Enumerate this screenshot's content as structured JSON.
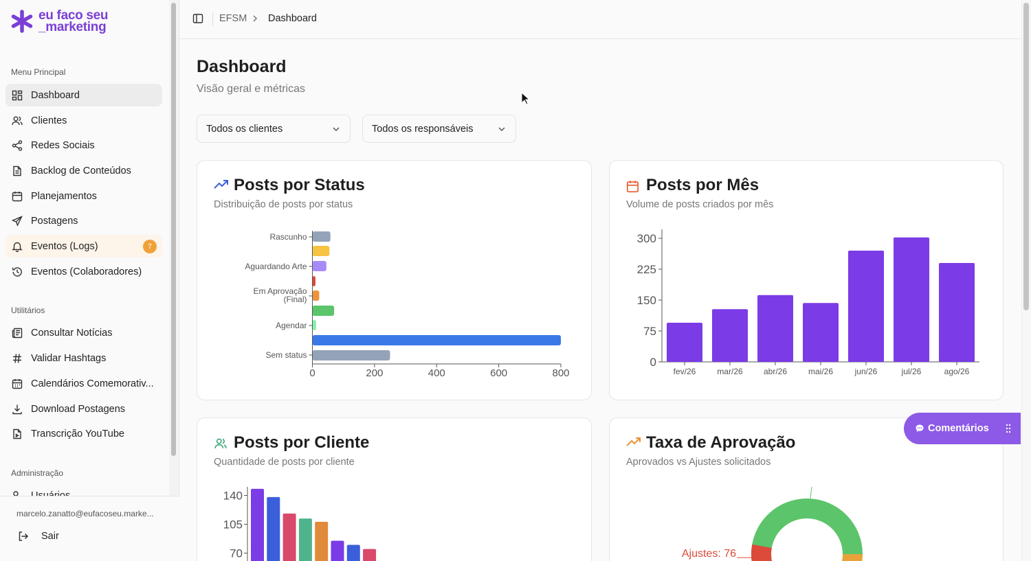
{
  "brand": {
    "line1": "eu faco seu",
    "line2": "_marketing",
    "color": "#7b3fd6"
  },
  "sidebar": {
    "sections": {
      "main": "Menu Principal",
      "utilities": "Utilitários",
      "admin": "Administração"
    },
    "main_items": [
      {
        "label": "Dashboard",
        "icon": "layout-grid-icon"
      },
      {
        "label": "Clientes",
        "icon": "users-icon"
      },
      {
        "label": "Redes Sociais",
        "icon": "share-icon"
      },
      {
        "label": "Backlog de Conteúdos",
        "icon": "file-text-icon"
      },
      {
        "label": "Planejamentos",
        "icon": "calendar-icon"
      },
      {
        "label": "Postagens",
        "icon": "send-icon"
      },
      {
        "label": "Eventos (Logs)",
        "icon": "bell-icon",
        "badge": "7"
      },
      {
        "label": "Eventos (Colaboradores)",
        "icon": "history-icon"
      }
    ],
    "utility_items": [
      {
        "label": "Consultar Notícias",
        "icon": "newspaper-icon"
      },
      {
        "label": "Validar Hashtags",
        "icon": "hash-icon"
      },
      {
        "label": "Calendários Comemorativ...",
        "icon": "calendar-days-icon"
      },
      {
        "label": "Download Postagens",
        "icon": "download-icon"
      },
      {
        "label": "Transcrição YouTube",
        "icon": "file-icon"
      }
    ],
    "admin_items": [
      {
        "label": "Usuários",
        "icon": "user-cog-icon"
      }
    ],
    "user_email": "marcelo.zanatto@eufacoseu.marke...",
    "logout_label": "Sair"
  },
  "topbar": {
    "breadcrumb_root": "EFSM",
    "breadcrumb_current": "Dashboard"
  },
  "page": {
    "title": "Dashboard",
    "subtitle": "Visão geral e métricas"
  },
  "filters": {
    "clients": "Todos os clientes",
    "responsibles": "Todos os responsáveis"
  },
  "cards": {
    "status": {
      "title": "Posts por Status",
      "subtitle": "Distribuição de posts por status",
      "icon": "trending-up-icon"
    },
    "month": {
      "title": "Posts por Mês",
      "subtitle": "Volume de posts criados por mês",
      "icon": "calendar-icon"
    },
    "client": {
      "title": "Posts por Cliente",
      "subtitle": "Quantidade de posts por cliente",
      "icon": "users-icon"
    },
    "approval": {
      "title": "Taxa de Aprovação",
      "subtitle": "Aprovados vs Ajustes solicitados",
      "icon": "trending-up-icon"
    }
  },
  "comments_button": "Comentários",
  "chart_data": [
    {
      "type": "bar",
      "orientation": "horizontal",
      "title": "Posts por Status",
      "category_labels": [
        "Rascunho",
        "Aguardando Arte",
        "Em Aprovação (Final)",
        "Agendar",
        "Sem status"
      ],
      "values": [
        58,
        55,
        45,
        10,
        22,
        70,
        12,
        800,
        250
      ],
      "bar_colors": [
        "#94a3b8",
        "#f6c343",
        "#a78bfa",
        "#dc4a3a",
        "#f0923a",
        "#5cc46a",
        "#86efac",
        "#3b78e7",
        "#94a3b8"
      ],
      "xticks": [
        "0",
        "200",
        "400",
        "600",
        "800"
      ],
      "xlim": [
        0,
        800
      ]
    },
    {
      "type": "bar",
      "title": "Posts por Mês",
      "categories": [
        "fev/26",
        "mar/26",
        "abr/26",
        "mai/26",
        "jun/26",
        "jul/26",
        "ago/26"
      ],
      "values": [
        95,
        128,
        162,
        143,
        270,
        302,
        240
      ],
      "yticks": [
        "0",
        "75",
        "150",
        "225",
        "300"
      ],
      "ylim": [
        0,
        300
      ],
      "color": "#7b3be6"
    },
    {
      "type": "bar",
      "title": "Posts por Cliente",
      "values": [
        148,
        138,
        118,
        112,
        108,
        85,
        80,
        75
      ],
      "colors": [
        "#7b3be6",
        "#3b5fdb",
        "#d94a6a",
        "#4fb38b",
        "#e08a3a",
        "#7b3be6",
        "#3b5fdb",
        "#d94a6a"
      ],
      "yticks": [
        "70",
        "105",
        "140"
      ]
    },
    {
      "type": "pie",
      "title": "Taxa de Aprovação",
      "label": "Ajustes: 76",
      "slices": [
        {
          "name": "Ajustes",
          "value": 76,
          "color": "#dc4a3a"
        },
        {
          "name": "Aprovados",
          "color": "#5cc46a"
        }
      ]
    }
  ]
}
